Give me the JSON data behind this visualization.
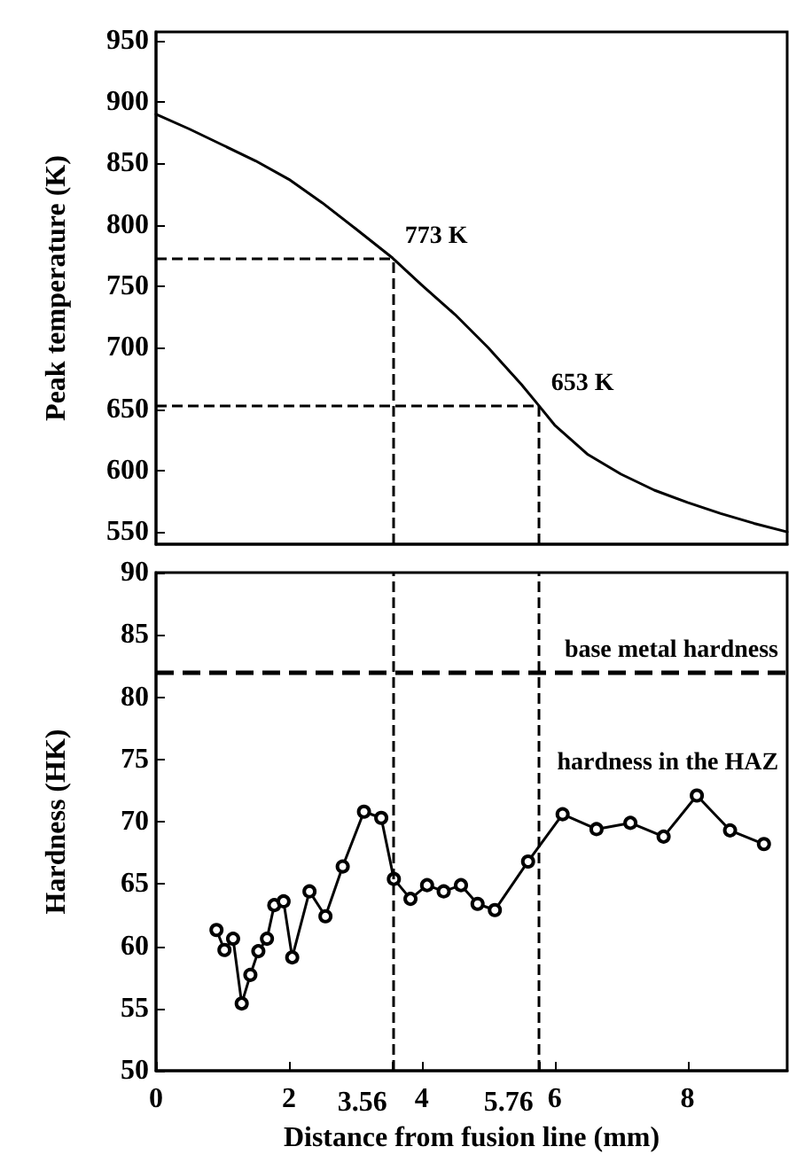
{
  "chart_data": [
    {
      "type": "line",
      "ylabel": "Peak temperature (K)",
      "xlim": [
        0,
        9.5
      ],
      "ylim": [
        540,
        957
      ],
      "yticks": [
        550,
        600,
        650,
        700,
        750,
        800,
        850,
        900,
        950
      ],
      "tick_labels": "y",
      "series": [
        {
          "color": "#000000",
          "x": [
            0,
            0.5,
            1,
            1.5,
            2,
            2.5,
            3,
            3.56,
            4,
            4.5,
            5,
            5.5,
            5.76,
            6,
            6.5,
            7,
            7.5,
            8,
            8.5,
            9,
            9.5
          ],
          "values": [
            890,
            878,
            865,
            852,
            837,
            818,
            797,
            773,
            751,
            727,
            700,
            670,
            653,
            637,
            613,
            597,
            584,
            574,
            565,
            557,
            550
          ]
        }
      ],
      "ref_lines": [
        {
          "axis": "x",
          "value": 3.56,
          "line_style": "dashed"
        },
        {
          "axis": "x",
          "value": 5.76,
          "line_style": "dashed"
        },
        {
          "axis": "y",
          "value": 773,
          "line_style": "dashed"
        },
        {
          "axis": "y",
          "value": 653,
          "line_style": "dashed"
        }
      ],
      "annotations": [
        {
          "text": "773 K",
          "x": 3.56,
          "y": 773
        },
        {
          "text": "653 K",
          "x": 5.76,
          "y": 653
        }
      ]
    },
    {
      "type": "line",
      "xlabel": "Distance from fusion line (mm)",
      "ylabel": "Hardness (HK)",
      "xlim": [
        0,
        9.5
      ],
      "xticks": [
        0,
        2,
        {
          "value": 3.56,
          "label": null
        },
        4,
        {
          "value": 5.76,
          "label": null
        },
        6,
        8
      ],
      "ylim": [
        50,
        90
      ],
      "yticks": [
        50,
        55,
        60,
        65,
        70,
        75,
        80,
        85,
        90
      ],
      "marker": "circle",
      "series": [
        {
          "color": "#000000",
          "x": [
            0.91,
            1.03,
            1.16,
            1.29,
            1.42,
            1.54,
            1.67,
            1.78,
            1.92,
            2.05,
            2.31,
            2.55,
            2.81,
            3.13,
            3.39,
            3.58,
            3.83,
            4.08,
            4.33,
            4.59,
            4.84,
            5.1,
            5.6,
            6.12,
            6.63,
            7.14,
            7.64,
            8.14,
            8.64,
            9.15
          ],
          "values": [
            61.3,
            59.7,
            60.6,
            55.4,
            57.7,
            59.6,
            60.6,
            63.3,
            63.6,
            59.1,
            64.4,
            62.4,
            66.4,
            70.8,
            70.3,
            65.4,
            63.8,
            64.9,
            64.4,
            64.9,
            63.4,
            62.9,
            66.8,
            70.6,
            69.4,
            69.9,
            68.8,
            72.1,
            69.3,
            68.2
          ]
        }
      ],
      "ref_lines": [
        {
          "axis": "x",
          "value": 3.56,
          "label": "3.56",
          "line_style": "dashed"
        },
        {
          "axis": "x",
          "value": 5.76,
          "label": "5.76",
          "line_style": "dashed"
        },
        {
          "axis": "y",
          "value": 82,
          "label": "base metal hardness",
          "line_style": "dashed"
        }
      ],
      "annotations": [
        {
          "text": "hardness in the HAZ",
          "x": 5.85,
          "y": 73
        }
      ]
    }
  ]
}
